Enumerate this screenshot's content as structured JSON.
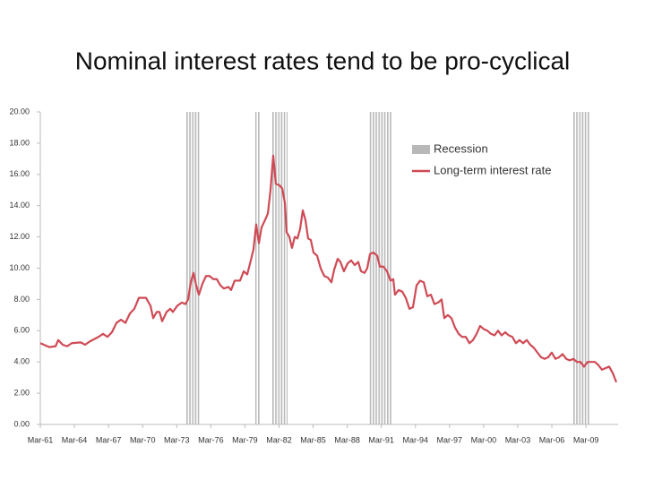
{
  "chart_data": {
    "type": "line",
    "title": "Nominal interest rates tend to be pro-cyclical",
    "xlim": [
      1961.17,
      2012.0
    ],
    "xticks": [
      {
        "value": 1961.17,
        "label": "Mar-61"
      },
      {
        "value": 1964.17,
        "label": "Mar-64"
      },
      {
        "value": 1967.17,
        "label": "Mar-67"
      },
      {
        "value": 1970.17,
        "label": "Mar-70"
      },
      {
        "value": 1973.17,
        "label": "Mar-73"
      },
      {
        "value": 1976.17,
        "label": "Mar-76"
      },
      {
        "value": 1979.17,
        "label": "Mar-79"
      },
      {
        "value": 1982.17,
        "label": "Mar-82"
      },
      {
        "value": 1985.17,
        "label": "Mar-85"
      },
      {
        "value": 1988.17,
        "label": "Mar-88"
      },
      {
        "value": 1991.17,
        "label": "Mar-91"
      },
      {
        "value": 1994.17,
        "label": "Mar-94"
      },
      {
        "value": 1997.17,
        "label": "Mar-97"
      },
      {
        "value": 2000.17,
        "label": "Mar-00"
      },
      {
        "value": 2003.17,
        "label": "Mar-03"
      },
      {
        "value": 2006.17,
        "label": "Mar-06"
      },
      {
        "value": 2009.17,
        "label": "Mar-09"
      }
    ],
    "ylim": [
      0,
      20
    ],
    "yticks": [
      {
        "value": 0,
        "label": "0.00"
      },
      {
        "value": 2,
        "label": "2.00"
      },
      {
        "value": 4,
        "label": "4.00"
      },
      {
        "value": 6,
        "label": "6.00"
      },
      {
        "value": 8,
        "label": "8.00"
      },
      {
        "value": 10,
        "label": "10.00"
      },
      {
        "value": 12,
        "label": "12.00"
      },
      {
        "value": 14,
        "label": "14.00"
      },
      {
        "value": 16,
        "label": "16.00"
      },
      {
        "value": 18,
        "label": "18.00"
      },
      {
        "value": 20,
        "label": "20.00"
      }
    ],
    "legend": "upper right",
    "recession": {
      "name": "Recession",
      "color": "#b8b8b8",
      "spans": [
        [
          1973.92,
          1975.17
        ],
        [
          1980.08,
          1980.5
        ],
        [
          1981.58,
          1982.92
        ],
        [
          1990.08,
          1992.08
        ],
        [
          2008.0,
          2009.5
        ]
      ]
    },
    "x": [
      1961.17,
      1961.96,
      1962.51,
      1962.75,
      1963.14,
      1963.53,
      1963.93,
      1964.72,
      1965.11,
      1965.5,
      1966.29,
      1966.69,
      1967.08,
      1967.47,
      1967.87,
      1968.26,
      1968.66,
      1969.05,
      1969.44,
      1969.84,
      1970.47,
      1970.86,
      1971.1,
      1971.41,
      1971.65,
      1971.89,
      1972.28,
      1972.6,
      1972.83,
      1973.23,
      1973.62,
      1973.94,
      1974.17,
      1974.41,
      1974.64,
      1974.88,
      1975.12,
      1975.43,
      1975.75,
      1976.06,
      1976.38,
      1976.69,
      1977.01,
      1977.32,
      1977.72,
      1977.95,
      1978.27,
      1978.74,
      1979.06,
      1979.37,
      1979.69,
      1979.92,
      1980.16,
      1980.4,
      1980.63,
      1980.95,
      1981.19,
      1981.42,
      1981.66,
      1981.89,
      1982.21,
      1982.45,
      1982.68,
      1982.84,
      1983.08,
      1983.31,
      1983.55,
      1983.79,
      1984.02,
      1984.26,
      1984.49,
      1984.73,
      1984.97,
      1985.2,
      1985.52,
      1985.83,
      1986.15,
      1986.46,
      1986.78,
      1987.02,
      1987.33,
      1987.57,
      1987.88,
      1988.2,
      1988.51,
      1988.83,
      1989.14,
      1989.38,
      1989.7,
      1989.93,
      1990.17,
      1990.48,
      1990.8,
      1991.04,
      1991.35,
      1991.67,
      1991.98,
      1992.22,
      1992.37,
      1992.69,
      1993.01,
      1993.32,
      1993.64,
      1993.95,
      1994.27,
      1994.58,
      1994.9,
      1995.21,
      1995.53,
      1995.84,
      1996.16,
      1996.47,
      1996.71,
      1997.02,
      1997.34,
      1997.65,
      1997.97,
      1998.28,
      1998.6,
      1998.92,
      1999.23,
      1999.55,
      1999.86,
      2000.18,
      2000.49,
      2000.81,
      2001.12,
      2001.44,
      2001.75,
      2002.07,
      2002.38,
      2002.7,
      2003.01,
      2003.33,
      2003.64,
      2003.96,
      2004.27,
      2004.59,
      2004.9,
      2005.22,
      2005.53,
      2005.85,
      2006.16,
      2006.48,
      2006.8,
      2007.11,
      2007.43,
      2007.74,
      2008.06,
      2008.37,
      2008.69,
      2009.0,
      2009.32,
      2009.63,
      2009.95,
      2010.26,
      2010.58,
      2010.89,
      2011.21,
      2011.52,
      2011.84
    ],
    "series": [
      {
        "name": "Long-term interest rate",
        "color": "#cf4a55",
        "values": [
          5.2,
          4.95,
          5.0,
          5.4,
          5.1,
          5.0,
          5.2,
          5.25,
          5.1,
          5.3,
          5.6,
          5.8,
          5.6,
          5.9,
          6.5,
          6.7,
          6.5,
          7.1,
          7.4,
          8.1,
          8.1,
          7.6,
          6.8,
          7.2,
          7.2,
          6.6,
          7.2,
          7.4,
          7.2,
          7.6,
          7.8,
          7.7,
          8.0,
          9.1,
          9.7,
          8.9,
          8.3,
          9.0,
          9.5,
          9.5,
          9.3,
          9.3,
          8.9,
          8.7,
          8.8,
          8.6,
          9.2,
          9.2,
          9.8,
          9.6,
          10.5,
          11.2,
          12.8,
          11.6,
          12.6,
          13.1,
          13.5,
          15.0,
          17.2,
          15.4,
          15.3,
          15.1,
          14.2,
          12.3,
          12.0,
          11.3,
          12.0,
          11.9,
          12.5,
          13.7,
          13.1,
          11.9,
          11.8,
          11.0,
          10.8,
          10.0,
          9.5,
          9.4,
          9.1,
          9.9,
          10.6,
          10.4,
          9.8,
          10.3,
          10.5,
          10.2,
          10.4,
          9.8,
          9.7,
          10.0,
          10.9,
          11.0,
          10.8,
          10.1,
          10.1,
          9.8,
          9.2,
          9.3,
          8.3,
          8.6,
          8.5,
          8.1,
          7.4,
          7.5,
          8.9,
          9.2,
          9.1,
          8.2,
          8.3,
          7.7,
          7.8,
          8.0,
          6.8,
          7.0,
          6.8,
          6.2,
          5.8,
          5.6,
          5.6,
          5.2,
          5.4,
          5.8,
          6.3,
          6.1,
          6.0,
          5.8,
          5.7,
          6.0,
          5.7,
          5.9,
          5.7,
          5.6,
          5.2,
          5.4,
          5.2,
          5.4,
          5.1,
          4.9,
          4.6,
          4.3,
          4.2,
          4.3,
          4.6,
          4.2,
          4.3,
          4.5,
          4.2,
          4.1,
          4.2,
          4.0,
          4.0,
          3.7,
          4.0,
          4.0,
          4.0,
          3.8,
          3.5,
          3.6,
          3.7,
          3.3,
          2.7
        ]
      }
    ]
  }
}
